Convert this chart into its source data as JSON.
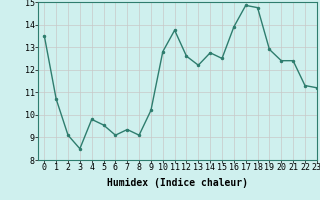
{
  "x": [
    0,
    1,
    2,
    3,
    4,
    5,
    6,
    7,
    8,
    9,
    10,
    11,
    12,
    13,
    14,
    15,
    16,
    17,
    18,
    19,
    20,
    21,
    22,
    23
  ],
  "y": [
    13.5,
    10.7,
    9.1,
    8.5,
    9.8,
    9.55,
    9.1,
    9.35,
    9.1,
    10.2,
    12.8,
    13.75,
    12.6,
    12.2,
    12.75,
    12.5,
    13.9,
    14.85,
    14.75,
    12.9,
    12.4,
    12.4,
    11.3,
    11.2
  ],
  "line_color": "#2e7d6e",
  "marker": ".",
  "marker_size": 3,
  "bg_color": "#cff0ee",
  "grid_color": "#c8c8c8",
  "xlabel": "Humidex (Indice chaleur)",
  "ylim": [
    8,
    15
  ],
  "xlim": [
    -0.5,
    23
  ],
  "yticks": [
    8,
    9,
    10,
    11,
    12,
    13,
    14,
    15
  ],
  "xticks": [
    0,
    1,
    2,
    3,
    4,
    5,
    6,
    7,
    8,
    9,
    10,
    11,
    12,
    13,
    14,
    15,
    16,
    17,
    18,
    19,
    20,
    21,
    22,
    23
  ],
  "xlabel_fontsize": 7,
  "tick_fontsize": 6,
  "line_width": 1.0
}
